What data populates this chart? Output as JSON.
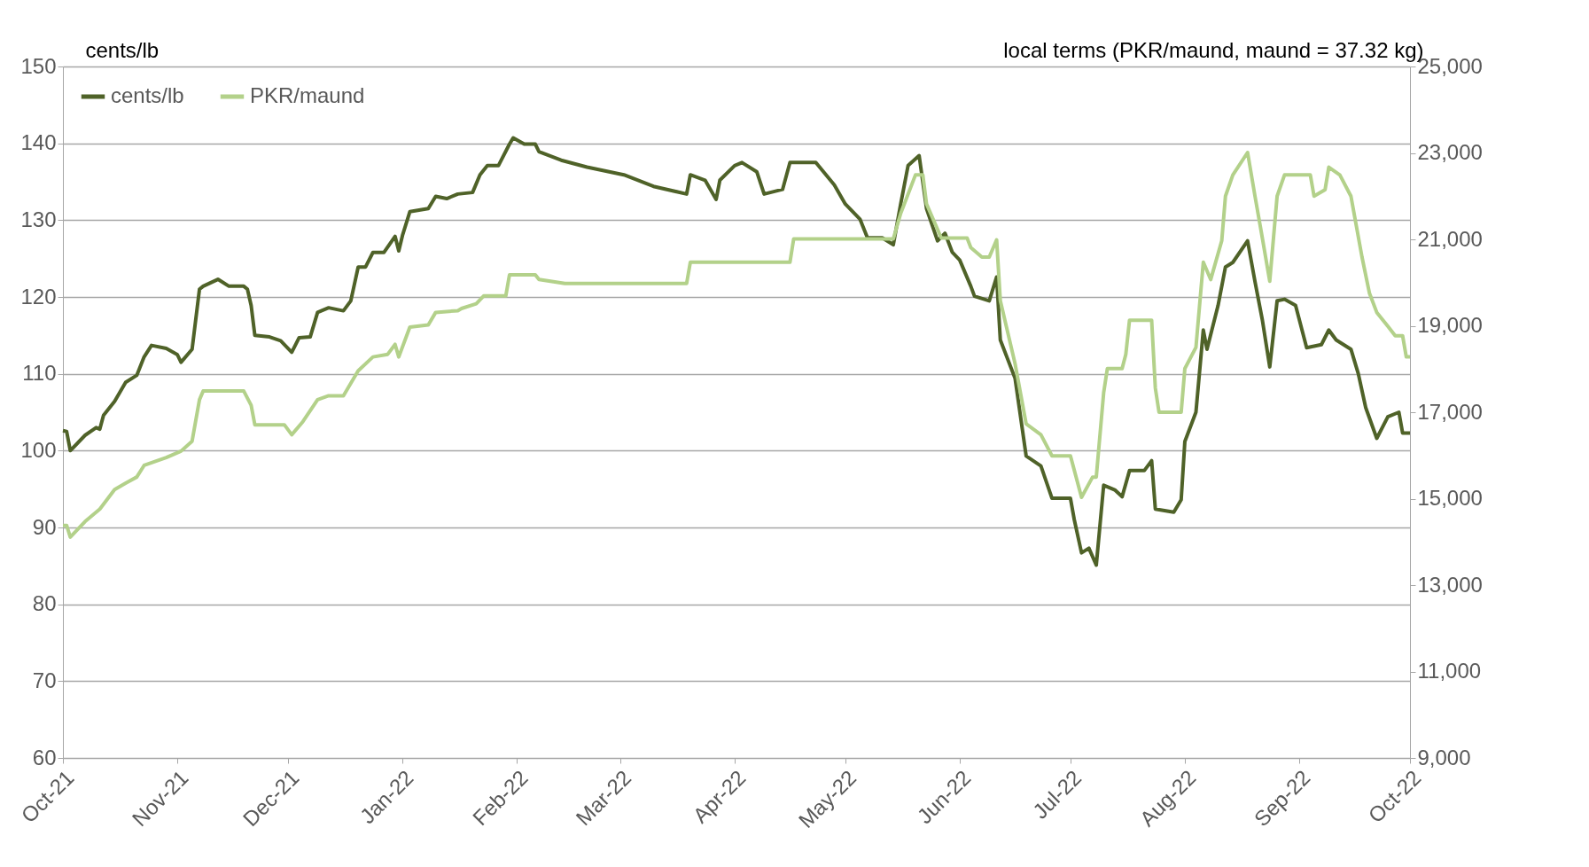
{
  "chart_data": {
    "type": "line",
    "ylabel": "cents/lb",
    "y2label": "local terms (PKR/maund, maund = 37.32 kg)",
    "xlim": [
      "2021-10-01",
      "2022-10-01"
    ],
    "xticks": [
      {
        "value": "2021-10-01",
        "label": "Oct-21"
      },
      {
        "value": "2021-11-01",
        "label": "Nov-21"
      },
      {
        "value": "2021-12-01",
        "label": "Dec-21"
      },
      {
        "value": "2022-01-01",
        "label": "Jan-22"
      },
      {
        "value": "2022-02-01",
        "label": "Feb-22"
      },
      {
        "value": "2022-03-01",
        "label": "Mar-22"
      },
      {
        "value": "2022-04-01",
        "label": "Apr-22"
      },
      {
        "value": "2022-05-01",
        "label": "May-22"
      },
      {
        "value": "2022-06-01",
        "label": "Jun-22"
      },
      {
        "value": "2022-07-01",
        "label": "Jul-22"
      },
      {
        "value": "2022-08-01",
        "label": "Aug-22"
      },
      {
        "value": "2022-09-01",
        "label": "Sep-22"
      },
      {
        "value": "2022-10-01",
        "label": "Oct-22"
      }
    ],
    "ylim": [
      60,
      150
    ],
    "yticks": [
      60,
      70,
      80,
      90,
      100,
      110,
      120,
      130,
      140,
      150
    ],
    "y2lim": [
      9000,
      25000
    ],
    "y2ticks": [
      {
        "value": 9000,
        "label": "9,000"
      },
      {
        "value": 11000,
        "label": "11,000"
      },
      {
        "value": 13000,
        "label": "13,000"
      },
      {
        "value": 15000,
        "label": "15,000"
      },
      {
        "value": 17000,
        "label": "17,000"
      },
      {
        "value": 19000,
        "label": "19,000"
      },
      {
        "value": 21000,
        "label": "21,000"
      },
      {
        "value": 23000,
        "label": "23,000"
      },
      {
        "value": 25000,
        "label": "25,000"
      }
    ],
    "grid": "y",
    "legend": "top left",
    "series": [
      {
        "name": "cents/lb",
        "color": "#4f6228",
        "x": [
          "2021-10-01",
          "2021-10-02",
          "2021-10-03",
          "2021-10-07",
          "2021-10-10",
          "2021-10-11",
          "2021-10-12",
          "2021-10-15",
          "2021-10-18",
          "2021-10-21",
          "2021-10-23",
          "2021-10-25",
          "2021-10-29",
          "2021-11-01",
          "2021-11-02",
          "2021-11-05",
          "2021-11-07",
          "2021-11-08",
          "2021-11-12",
          "2021-11-15",
          "2021-11-19",
          "2021-11-20",
          "2021-11-21",
          "2021-11-22",
          "2021-11-26",
          "2021-11-29",
          "2021-12-02",
          "2021-12-04",
          "2021-12-07",
          "2021-12-09",
          "2021-12-12",
          "2021-12-16",
          "2021-12-18",
          "2021-12-20",
          "2021-12-22",
          "2021-12-24",
          "2021-12-27",
          "2021-12-30",
          "2021-12-31",
          "2022-01-01",
          "2022-01-03",
          "2022-01-08",
          "2022-01-10",
          "2022-01-13",
          "2022-01-16",
          "2022-01-20",
          "2022-01-22",
          "2022-01-24",
          "2022-01-27",
          "2022-01-30",
          "2022-01-31",
          "2022-02-03",
          "2022-02-06",
          "2022-02-07",
          "2022-02-13",
          "2022-02-20",
          "2022-03-02",
          "2022-03-10",
          "2022-03-19",
          "2022-03-20",
          "2022-03-24",
          "2022-03-27",
          "2022-03-28",
          "2022-04-01",
          "2022-04-03",
          "2022-04-07",
          "2022-04-09",
          "2022-04-14",
          "2022-04-16",
          "2022-04-23",
          "2022-04-28",
          "2022-05-01",
          "2022-05-05",
          "2022-05-07",
          "2022-05-11",
          "2022-05-14",
          "2022-05-16",
          "2022-05-18",
          "2022-05-21",
          "2022-05-23",
          "2022-05-26",
          "2022-05-28",
          "2022-05-30",
          "2022-06-01",
          "2022-06-04",
          "2022-06-05",
          "2022-06-09",
          "2022-06-11",
          "2022-06-12",
          "2022-06-16",
          "2022-06-19",
          "2022-06-23",
          "2022-06-26",
          "2022-07-01",
          "2022-07-02",
          "2022-07-04",
          "2022-07-06",
          "2022-07-08",
          "2022-07-10",
          "2022-07-13",
          "2022-07-15",
          "2022-07-17",
          "2022-07-21",
          "2022-07-23",
          "2022-07-24",
          "2022-07-29",
          "2022-07-31",
          "2022-08-01",
          "2022-08-04",
          "2022-08-06",
          "2022-08-07",
          "2022-08-10",
          "2022-08-12",
          "2022-08-14",
          "2022-08-18",
          "2022-08-20",
          "2022-08-22",
          "2022-08-24",
          "2022-08-26",
          "2022-08-28",
          "2022-08-31",
          "2022-09-03",
          "2022-09-07",
          "2022-09-09",
          "2022-09-11",
          "2022-09-15",
          "2022-09-17",
          "2022-09-19",
          "2022-09-22",
          "2022-09-25",
          "2022-09-28",
          "2022-09-29",
          "2022-10-01"
        ],
        "values": [
          102.6,
          102.5,
          100.0,
          102.0,
          103.0,
          102.8,
          104.6,
          106.4,
          108.9,
          109.8,
          112.2,
          113.7,
          113.3,
          112.5,
          111.5,
          113.2,
          121.0,
          121.4,
          122.3,
          121.4,
          121.4,
          121.0,
          118.9,
          115.0,
          114.8,
          114.3,
          112.8,
          114.7,
          114.8,
          118.0,
          118.6,
          118.2,
          119.5,
          123.9,
          123.9,
          125.8,
          125.8,
          127.9,
          126.0,
          128.0,
          131.1,
          131.5,
          133.1,
          132.8,
          133.4,
          133.6,
          135.9,
          137.1,
          137.1,
          139.9,
          140.7,
          139.9,
          139.9,
          138.9,
          137.8,
          136.9,
          135.9,
          134.4,
          133.4,
          135.9,
          135.2,
          132.7,
          135.2,
          137.1,
          137.5,
          136.3,
          133.4,
          134.0,
          137.5,
          137.5,
          134.6,
          132.1,
          130.1,
          127.7,
          127.7,
          126.8,
          132.1,
          137.1,
          138.4,
          131.5,
          127.3,
          128.3,
          125.8,
          124.8,
          121.4,
          120.1,
          119.5,
          122.6,
          114.4,
          109.4,
          99.3,
          98.0,
          93.8,
          93.8,
          91.1,
          86.7,
          87.3,
          85.1,
          95.5,
          94.9,
          94.0,
          97.4,
          97.4,
          98.7,
          92.4,
          92.0,
          93.6,
          101.2,
          105.0,
          115.7,
          113.2,
          118.9,
          123.9,
          124.5,
          127.3,
          122.0,
          117.0,
          110.9,
          119.5,
          119.7,
          118.9,
          113.4,
          113.8,
          115.7,
          114.4,
          113.2,
          110.0,
          105.6,
          101.6,
          104.4,
          105.0,
          102.3,
          102.3
        ]
      },
      {
        "name": "PKR/maund",
        "color": "#b3d18a",
        "axis": "y2",
        "x": [
          "2021-10-01",
          "2021-10-02",
          "2021-10-03",
          "2021-10-07",
          "2021-10-11",
          "2021-10-15",
          "2021-10-18",
          "2021-10-21",
          "2021-10-23",
          "2021-10-29",
          "2021-11-02",
          "2021-11-05",
          "2021-11-07",
          "2021-11-08",
          "2021-11-19",
          "2021-11-21",
          "2021-11-22",
          "2021-11-30",
          "2021-12-02",
          "2021-12-05",
          "2021-12-09",
          "2021-12-12",
          "2021-12-16",
          "2021-12-20",
          "2021-12-24",
          "2021-12-28",
          "2021-12-30",
          "2021-12-31",
          "2022-01-03",
          "2022-01-08",
          "2022-01-10",
          "2022-01-16",
          "2022-01-17",
          "2022-01-21",
          "2022-01-23",
          "2022-01-29",
          "2022-01-30",
          "2022-02-06",
          "2022-02-07",
          "2022-02-14",
          "2022-03-19",
          "2022-03-20",
          "2022-04-16",
          "2022-04-17",
          "2022-05-14",
          "2022-05-16",
          "2022-05-20",
          "2022-05-22",
          "2022-05-23",
          "2022-05-27",
          "2022-06-03",
          "2022-06-04",
          "2022-06-07",
          "2022-06-09",
          "2022-06-11",
          "2022-06-12",
          "2022-06-16",
          "2022-06-19",
          "2022-06-23",
          "2022-06-26",
          "2022-07-01",
          "2022-07-04",
          "2022-07-07",
          "2022-07-08",
          "2022-07-10",
          "2022-07-11",
          "2022-07-15",
          "2022-07-16",
          "2022-07-17",
          "2022-07-23",
          "2022-07-24",
          "2022-07-25",
          "2022-07-31",
          "2022-08-01",
          "2022-08-04",
          "2022-08-06",
          "2022-08-08",
          "2022-08-11",
          "2022-08-12",
          "2022-08-14",
          "2022-08-18",
          "2022-08-20",
          "2022-08-22",
          "2022-08-24",
          "2022-08-26",
          "2022-08-28",
          "2022-09-04",
          "2022-09-05",
          "2022-09-08",
          "2022-09-09",
          "2022-09-12",
          "2022-09-15",
          "2022-09-18",
          "2022-09-20",
          "2022-09-22",
          "2022-09-25",
          "2022-09-27",
          "2022-09-29",
          "2022-09-30",
          "2022-10-01"
        ],
        "values": [
          14380,
          14380,
          14110,
          14470,
          14760,
          15210,
          15360,
          15500,
          15770,
          15950,
          16100,
          16330,
          17290,
          17490,
          17490,
          17160,
          16710,
          16710,
          16480,
          16780,
          17290,
          17380,
          17380,
          17960,
          18280,
          18340,
          18570,
          18280,
          18970,
          19020,
          19310,
          19350,
          19400,
          19510,
          19690,
          19690,
          20180,
          20180,
          20070,
          19980,
          19980,
          20470,
          20470,
          21010,
          21010,
          21600,
          22490,
          22490,
          21820,
          21030,
          21030,
          20810,
          20590,
          20590,
          20990,
          19580,
          18120,
          16730,
          16480,
          15990,
          15990,
          15030,
          15500,
          15500,
          17450,
          18010,
          18010,
          18340,
          19130,
          19130,
          17560,
          17000,
          17000,
          18010,
          18500,
          20470,
          20070,
          20970,
          22000,
          22490,
          23010,
          22000,
          21030,
          20030,
          22000,
          22490,
          22490,
          22000,
          22150,
          22670,
          22490,
          22000,
          20590,
          19760,
          19310,
          18990,
          18770,
          18770,
          18280,
          18280
        ]
      }
    ]
  }
}
